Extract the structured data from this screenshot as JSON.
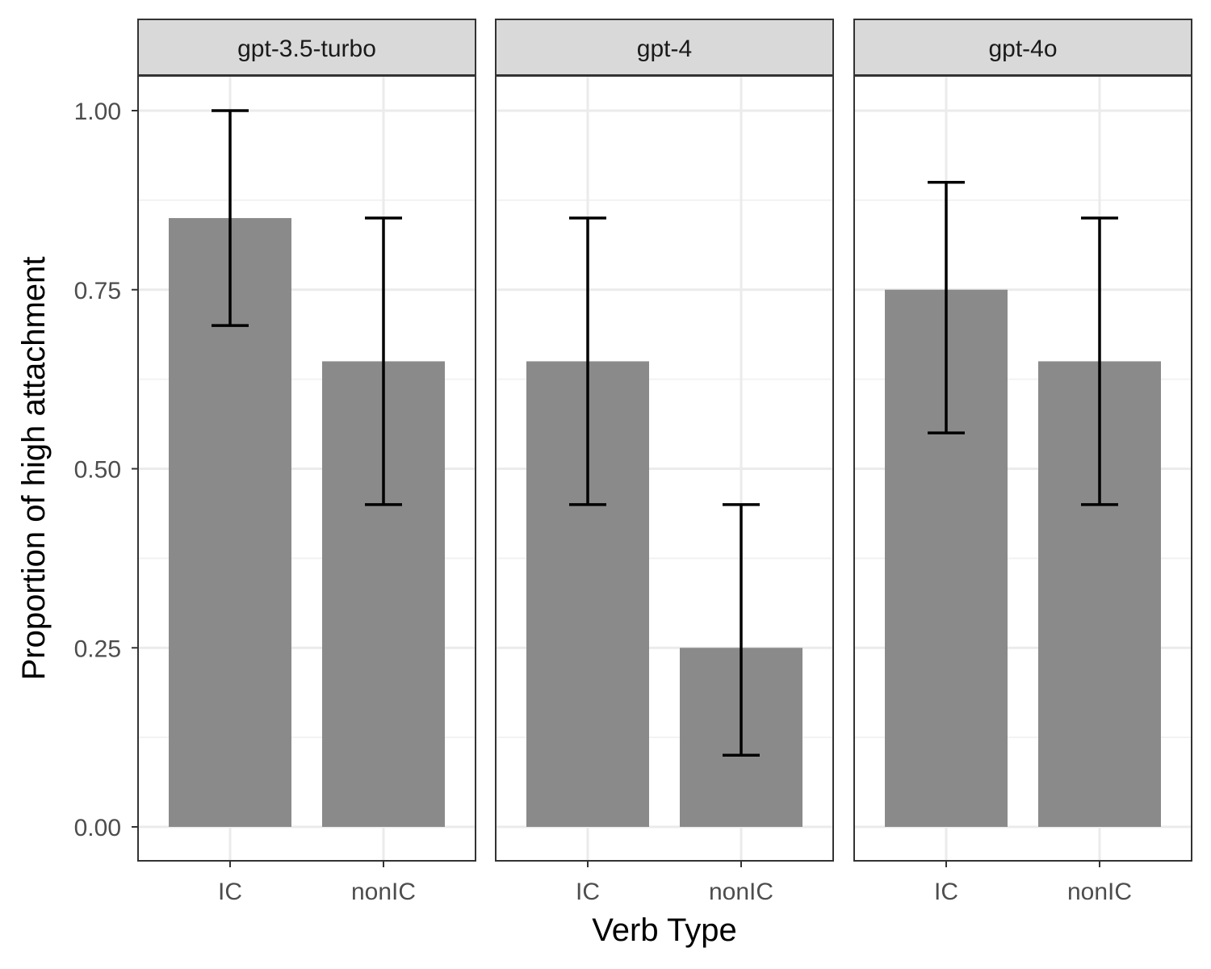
{
  "chart_data": {
    "type": "bar",
    "xlabel": "Verb Type",
    "ylabel": "Proportion of high attachment",
    "ylim": [
      -0.05,
      1.05
    ],
    "y_ticks": [
      "0.00",
      "0.25",
      "0.50",
      "0.75",
      "1.00"
    ],
    "grid": true,
    "categories": [
      "IC",
      "nonIC"
    ],
    "facets": [
      {
        "label": "gpt-3.5-turbo",
        "bars": [
          {
            "category": "IC",
            "value": 0.85,
            "error_low": 0.7,
            "error_high": 1.0
          },
          {
            "category": "nonIC",
            "value": 0.65,
            "error_low": 0.45,
            "error_high": 0.85
          }
        ]
      },
      {
        "label": "gpt-4",
        "bars": [
          {
            "category": "IC",
            "value": 0.65,
            "error_low": 0.45,
            "error_high": 0.85
          },
          {
            "category": "nonIC",
            "value": 0.25,
            "error_low": 0.1,
            "error_high": 0.45
          }
        ]
      },
      {
        "label": "gpt-4o",
        "bars": [
          {
            "category": "IC",
            "value": 0.75,
            "error_low": 0.55,
            "error_high": 0.9
          },
          {
            "category": "nonIC",
            "value": 0.65,
            "error_low": 0.45,
            "error_high": 0.85
          }
        ]
      }
    ],
    "colors": {
      "bar": "#8a8a8a",
      "error_bar": "#000000",
      "strip_fill": "#d9d9d9",
      "panel_border": "#333333",
      "grid_major": "#ebebeb",
      "grid_minor": "#f2f2f2"
    }
  }
}
